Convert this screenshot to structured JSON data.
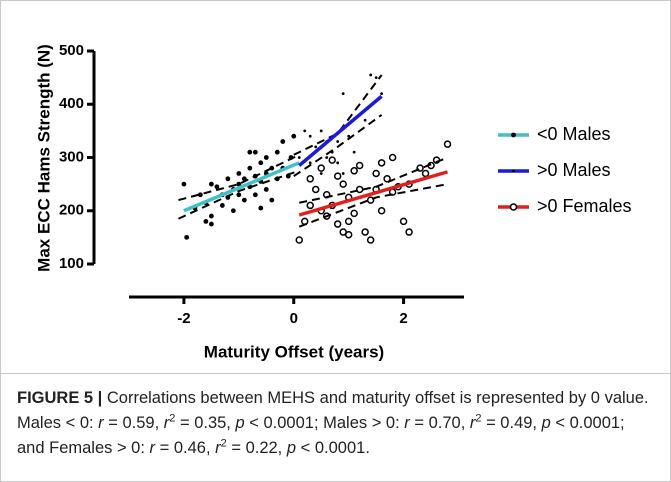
{
  "chart_data": {
    "type": "scatter",
    "xlabel": "Maturity Offset (years)",
    "ylabel": "Max ECC Hams Strength (N)",
    "xlim": [
      -3,
      3.1
    ],
    "ylim": [
      38,
      500
    ],
    "xticks": [
      -2,
      0,
      2
    ],
    "yticks": [
      100,
      200,
      300,
      400,
      500
    ],
    "marker_color": "#000000",
    "series": [
      {
        "name": "<0 Males",
        "color": "#3ec1c9",
        "marker": "dot",
        "x": [
          -2,
          -1.95,
          -1.8,
          -1.7,
          -1.6,
          -1.5,
          -1.5,
          -1.5,
          -1.4,
          -1.3,
          -1.3,
          -1.2,
          -1.2,
          -1.1,
          -1.1,
          -1.0,
          -1.0,
          -1.0,
          -0.9,
          -0.9,
          -0.8,
          -0.8,
          -0.8,
          -0.7,
          -0.7,
          -0.7,
          -0.6,
          -0.6,
          -0.5,
          -0.5,
          -0.5,
          -0.4,
          -0.4,
          -0.3,
          -0.3,
          -0.2,
          -0.2,
          -0.1,
          -0.05,
          0,
          -0.6,
          -1.6
        ],
        "values": [
          250,
          150,
          205,
          230,
          215,
          190,
          175,
          250,
          245,
          230,
          210,
          260,
          225,
          240,
          200,
          270,
          250,
          230,
          260,
          220,
          310,
          280,
          245,
          310,
          265,
          230,
          290,
          255,
          300,
          270,
          240,
          280,
          220,
          310,
          260,
          330,
          280,
          265,
          300,
          340,
          205,
          180
        ],
        "fit_x": [
          -2,
          0.1
        ],
        "fit_y": [
          200,
          290
        ],
        "band_x": [
          -2.1,
          -1,
          0.1
        ],
        "band_upper": [
          220,
          250,
          305
        ],
        "band_lower": [
          185,
          237,
          275
        ]
      },
      {
        "name": ">0 Males",
        "color": "#1a1adb",
        "marker": "small",
        "x": [
          0.1,
          0.2,
          0.3,
          0.3,
          0.4,
          0.5,
          0.6,
          0.6,
          0.7,
          0.8,
          0.8,
          0.9,
          1.0,
          1.1,
          1.3,
          1.4,
          1.5,
          1.6,
          0.5,
          0.9
        ],
        "values": [
          300,
          350,
          340,
          290,
          320,
          350,
          300,
          330,
          310,
          290,
          330,
          420,
          340,
          310,
          370,
          455,
          450,
          420,
          270,
          270
        ],
        "fit_x": [
          0.1,
          1.6
        ],
        "fit_y": [
          285,
          415
        ],
        "band_x": [
          0,
          0.8,
          1.6
        ],
        "band_upper": [
          305,
          345,
          455
        ],
        "band_lower": [
          265,
          320,
          380
        ]
      },
      {
        "name": ">0 Females",
        "color": "#e0201b",
        "marker": "open",
        "x": [
          0.1,
          0.2,
          0.3,
          0.3,
          0.4,
          0.5,
          0.5,
          0.6,
          0.6,
          0.7,
          0.8,
          0.8,
          0.9,
          0.9,
          1.0,
          1.0,
          1.0,
          1.1,
          1.1,
          1.2,
          1.3,
          1.4,
          1.4,
          1.5,
          1.5,
          1.6,
          1.6,
          1.7,
          1.8,
          1.8,
          1.9,
          2.0,
          2.1,
          2.1,
          2.3,
          2.4,
          2.5,
          2.6,
          2.8,
          1.2,
          0.7
        ],
        "values": [
          145,
          180,
          210,
          260,
          240,
          200,
          280,
          230,
          190,
          210,
          265,
          175,
          250,
          160,
          155,
          180,
          225,
          195,
          275,
          240,
          160,
          145,
          220,
          270,
          240,
          290,
          200,
          260,
          300,
          235,
          245,
          180,
          160,
          250,
          280,
          270,
          285,
          295,
          325,
          285,
          295
        ],
        "fit_x": [
          0.1,
          2.8
        ],
        "fit_y": [
          192,
          273
        ],
        "band_x": [
          0.1,
          1.5,
          2.8
        ],
        "band_upper": [
          215,
          245,
          300
        ],
        "band_lower": [
          170,
          225,
          250
        ]
      }
    ]
  },
  "caption": {
    "label": "FIGURE 5 |",
    "parts": [
      {
        "text": " Correlations between MEHS and maturity offset is represented by 0 value. Males < 0: ",
        "style": "normal"
      },
      {
        "text": "r",
        "style": "italic"
      },
      {
        "text": " = 0.59, ",
        "style": "normal"
      },
      {
        "text": "r",
        "style": "italic"
      },
      {
        "text": "2",
        "style": "sup"
      },
      {
        "text": " = 0.35, ",
        "style": "normal"
      },
      {
        "text": "p",
        "style": "italic"
      },
      {
        "text": " < 0.0001; Males > 0: ",
        "style": "normal"
      },
      {
        "text": "r",
        "style": "italic"
      },
      {
        "text": " = 0.70, ",
        "style": "normal"
      },
      {
        "text": "r",
        "style": "italic"
      },
      {
        "text": "2",
        "style": "sup"
      },
      {
        "text": " = 0.49, ",
        "style": "normal"
      },
      {
        "text": "p",
        "style": "italic"
      },
      {
        "text": " < 0.0001; and Females > 0: ",
        "style": "normal"
      },
      {
        "text": "r",
        "style": "italic"
      },
      {
        "text": " = 0.46, ",
        "style": "normal"
      },
      {
        "text": "r",
        "style": "italic"
      },
      {
        "text": "2",
        "style": "sup"
      },
      {
        "text": " = 0.22, ",
        "style": "normal"
      },
      {
        "text": "p",
        "style": "italic"
      },
      {
        "text": " < 0.0001.",
        "style": "normal"
      }
    ]
  }
}
